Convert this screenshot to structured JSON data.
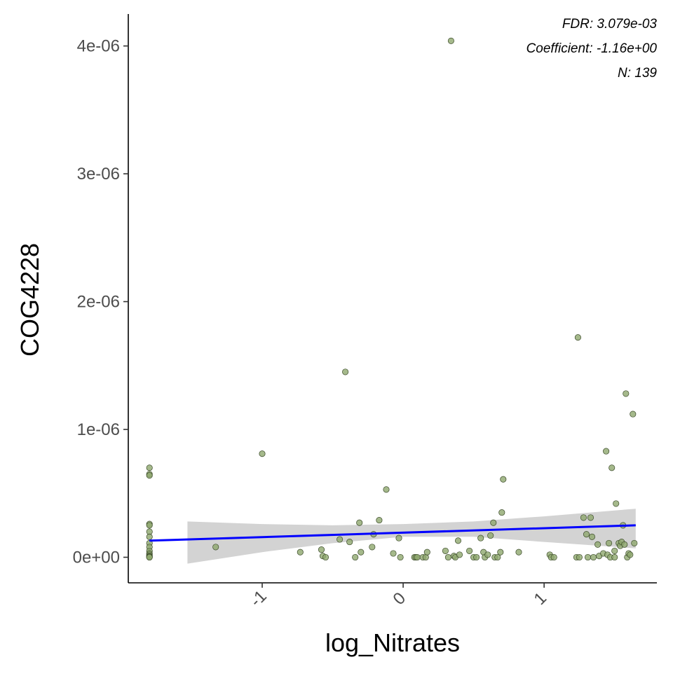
{
  "chart_data": {
    "type": "scatter",
    "xlabel": "log_Nitrates",
    "ylabel": "COG4228",
    "xlim": [
      -1.95,
      1.8
    ],
    "ylim": [
      -2e-07,
      4.25e-06
    ],
    "x_ticks": [
      -1,
      0,
      1
    ],
    "x_tick_labels": [
      "-1",
      "0",
      "1"
    ],
    "y_ticks": [
      0,
      1e-06,
      2e-06,
      3e-06,
      4e-06
    ],
    "y_tick_labels": [
      "0e+00",
      "1e-06",
      "2e-06",
      "3e-06",
      "4e-06"
    ],
    "annotations": [
      "FDR: 3.079e-03",
      "Coefficient: -1.16e+00",
      "N: 139"
    ],
    "grid": false,
    "point_color": "#8fa76e",
    "point_edge_color": "#3b4a2a",
    "fit_line_color": "#0000ff",
    "ci_band_color": "#d3d3d3",
    "fit_line": {
      "x": [
        -1.8,
        1.65
      ],
      "y": [
        1.3e-07,
        2.5e-07
      ]
    },
    "ci_band": {
      "x": [
        -1.53,
        -1.0,
        -0.5,
        0.0,
        0.5,
        1.0,
        1.65
      ],
      "lower": [
        -5e-08,
        4e-08,
        1.1e-07,
        1.6e-07,
        1.6e-07,
        1.2e-07,
        7e-08
      ],
      "upper": [
        2.8e-07,
        2.6e-07,
        2.5e-07,
        2.6e-07,
        2.8e-07,
        3.2e-07,
        3.8e-07
      ]
    },
    "points": {
      "x": [
        -1.8,
        -1.8,
        -1.8,
        -1.8,
        -1.8,
        -1.8,
        -1.8,
        -1.8,
        -1.8,
        -1.8,
        -1.8,
        -1.8,
        -1.8,
        -1.8,
        -1.8,
        -1.8,
        -1.33,
        -1.0,
        -0.73,
        -0.58,
        -0.57,
        -0.55,
        -0.45,
        -0.41,
        -0.38,
        -0.34,
        -0.31,
        -0.3,
        -0.22,
        -0.21,
        -0.17,
        -0.12,
        -0.07,
        -0.03,
        -0.02,
        0.08,
        0.09,
        0.1,
        0.14,
        0.16,
        0.17,
        0.3,
        0.32,
        0.34,
        0.36,
        0.37,
        0.39,
        0.4,
        0.47,
        0.5,
        0.52,
        0.55,
        0.57,
        0.58,
        0.6,
        0.62,
        0.64,
        0.65,
        0.67,
        0.69,
        0.7,
        0.71,
        0.82,
        1.04,
        1.05,
        1.07,
        1.23,
        1.24,
        1.25,
        1.28,
        1.3,
        1.31,
        1.33,
        1.34,
        1.35,
        1.38,
        1.39,
        1.42,
        1.44,
        1.45,
        1.46,
        1.47,
        1.48,
        1.5,
        1.5,
        1.51,
        1.53,
        1.54,
        1.55,
        1.56,
        1.57,
        1.58,
        1.59,
        1.6,
        1.61,
        1.63,
        1.64
      ],
      "y": [
        7e-07,
        6.5e-07,
        6.4e-07,
        2.6e-07,
        2.5e-07,
        2e-07,
        1.6e-07,
        1.1e-07,
        8e-08,
        5e-08,
        3e-08,
        2e-08,
        1e-08,
        5e-09,
        0.0,
        0.0,
        8e-08,
        8.1e-07,
        4e-08,
        6e-08,
        1e-08,
        0.0,
        1.4e-07,
        1.45e-06,
        1.2e-07,
        0.0,
        2.7e-07,
        4e-08,
        8e-08,
        1.8e-07,
        2.9e-07,
        5.3e-07,
        3e-08,
        1.5e-07,
        0.0,
        0.0,
        0.0,
        0.0,
        0.0,
        0.0,
        4e-08,
        5e-08,
        0.0,
        4.04e-06,
        1e-08,
        0.0,
        1.3e-07,
        2e-08,
        5e-08,
        0.0,
        0.0,
        1.5e-07,
        4e-08,
        0.0,
        2e-08,
        1.7e-07,
        2.7e-07,
        0.0,
        0.0,
        4e-08,
        3.5e-07,
        6.1e-07,
        4e-08,
        2e-08,
        0.0,
        0.0,
        0.0,
        1.72e-06,
        0.0,
        3.1e-07,
        1.8e-07,
        0.0,
        3.1e-07,
        1.6e-07,
        0.0,
        1e-07,
        1e-08,
        3e-08,
        8.3e-07,
        2e-08,
        1.1e-07,
        0.0,
        7e-07,
        5e-08,
        0.0,
        4.2e-07,
        1.1e-07,
        9e-08,
        1.2e-07,
        2.5e-07,
        1e-07,
        1.28e-06,
        0.0,
        3e-08,
        2e-08,
        1.12e-06,
        1.1e-07
      ]
    }
  }
}
